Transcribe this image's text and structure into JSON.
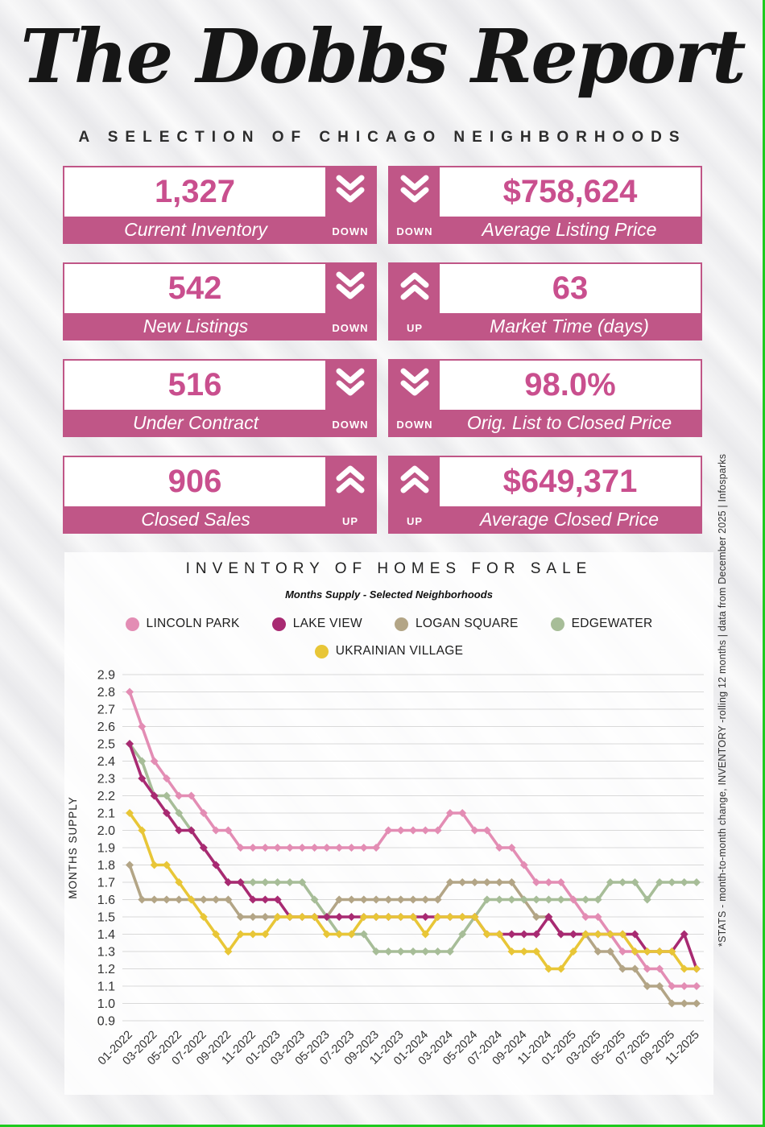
{
  "header": {
    "title": "The Dobbs Report",
    "subtitle": "A SELECTION OF CHICAGO NEIGHBORHOODS"
  },
  "stats": {
    "accent_color": "#c05687",
    "number_color": "#c94f8e",
    "cards": [
      {
        "value": "1,327",
        "label": "Current Inventory",
        "direction": "down",
        "trend_label": "DOWN",
        "arrow_side": "right"
      },
      {
        "value": "$758,624",
        "label": "Average Listing Price",
        "direction": "down",
        "trend_label": "DOWN",
        "arrow_side": "left"
      },
      {
        "value": "542",
        "label": "New Listings",
        "direction": "down",
        "trend_label": "DOWN",
        "arrow_side": "right"
      },
      {
        "value": "63",
        "label": "Market Time (days)",
        "direction": "up",
        "trend_label": "UP",
        "arrow_side": "left"
      },
      {
        "value": "516",
        "label": "Under Contract",
        "direction": "down",
        "trend_label": "DOWN",
        "arrow_side": "right"
      },
      {
        "value": "98.0%",
        "label": "Orig. List to Closed Price",
        "direction": "down",
        "trend_label": "DOWN",
        "arrow_side": "left"
      },
      {
        "value": "906",
        "label": "Closed Sales",
        "direction": "up",
        "trend_label": "UP",
        "arrow_side": "right"
      },
      {
        "value": "$649,371",
        "label": "Average Closed Price",
        "direction": "up",
        "trend_label": "UP",
        "arrow_side": "left"
      }
    ]
  },
  "chart": {
    "title": "INVENTORY OF HOMES FOR SALE",
    "subtitle": "Months Supply - Selected Neighborhoods",
    "ylabel": "MONTHS SUPPLY"
  },
  "chart_data": {
    "type": "line",
    "title": "INVENTORY OF HOMES FOR SALE",
    "subtitle": "Months Supply - Selected Neighborhoods",
    "ylabel": "MONTHS SUPPLY",
    "ylim": [
      0.9,
      2.9
    ],
    "ytick_step": 0.1,
    "grid": true,
    "legend_position": "top",
    "marker": "diamond",
    "x_start": "01-2022",
    "x_end": "11-2025",
    "x_tick_labels": [
      "01-2022",
      "03-2022",
      "05-2022",
      "07-2022",
      "09-2022",
      "11-2022",
      "01-2023",
      "03-2023",
      "05-2023",
      "07-2023",
      "09-2023",
      "11-2023",
      "01-2024",
      "03-2024",
      "05-2024",
      "07-2024",
      "09-2024",
      "11-2024",
      "01-2025",
      "03-2025",
      "05-2025",
      "07-2025",
      "09-2025",
      "11-2025"
    ],
    "points_per_series": 47,
    "series": [
      {
        "name": "LINCOLN PARK",
        "color": "#e38db4",
        "values": [
          2.8,
          2.6,
          2.4,
          2.3,
          2.2,
          2.2,
          2.1,
          2.0,
          2.0,
          1.9,
          1.9,
          1.9,
          1.9,
          1.9,
          1.9,
          1.9,
          1.9,
          1.9,
          1.9,
          1.9,
          1.9,
          2.0,
          2.0,
          2.0,
          2.0,
          2.0,
          2.1,
          2.1,
          2.0,
          2.0,
          1.9,
          1.9,
          1.8,
          1.7,
          1.7,
          1.7,
          1.6,
          1.5,
          1.5,
          1.4,
          1.3,
          1.3,
          1.2,
          1.2,
          1.1,
          1.1,
          1.1
        ]
      },
      {
        "name": "LAKE VIEW",
        "color": "#a82a72",
        "values": [
          2.5,
          2.3,
          2.2,
          2.1,
          2.0,
          2.0,
          1.9,
          1.8,
          1.7,
          1.7,
          1.6,
          1.6,
          1.6,
          1.5,
          1.5,
          1.5,
          1.5,
          1.5,
          1.5,
          1.5,
          1.5,
          1.5,
          1.5,
          1.5,
          1.5,
          1.5,
          1.5,
          1.5,
          1.5,
          1.4,
          1.4,
          1.4,
          1.4,
          1.4,
          1.5,
          1.4,
          1.4,
          1.4,
          1.4,
          1.4,
          1.4,
          1.4,
          1.3,
          1.3,
          1.3,
          1.4,
          1.2
        ]
      },
      {
        "name": "LOGAN SQUARE",
        "color": "#b3a586",
        "values": [
          1.8,
          1.6,
          1.6,
          1.6,
          1.6,
          1.6,
          1.6,
          1.6,
          1.6,
          1.5,
          1.5,
          1.5,
          1.5,
          1.5,
          1.5,
          1.5,
          1.5,
          1.6,
          1.6,
          1.6,
          1.6,
          1.6,
          1.6,
          1.6,
          1.6,
          1.6,
          1.7,
          1.7,
          1.7,
          1.7,
          1.7,
          1.7,
          1.6,
          1.5,
          1.5,
          1.4,
          1.4,
          1.4,
          1.3,
          1.3,
          1.2,
          1.2,
          1.1,
          1.1,
          1.0,
          1.0,
          1.0
        ]
      },
      {
        "name": "EDGEWATER",
        "color": "#a7bd98",
        "values": [
          2.5,
          2.4,
          2.2,
          2.2,
          2.1,
          2.0,
          1.9,
          1.8,
          1.7,
          1.7,
          1.7,
          1.7,
          1.7,
          1.7,
          1.7,
          1.6,
          1.5,
          1.4,
          1.4,
          1.4,
          1.3,
          1.3,
          1.3,
          1.3,
          1.3,
          1.3,
          1.3,
          1.4,
          1.5,
          1.6,
          1.6,
          1.6,
          1.6,
          1.6,
          1.6,
          1.6,
          1.6,
          1.6,
          1.6,
          1.7,
          1.7,
          1.7,
          1.6,
          1.7,
          1.7,
          1.7,
          1.7
        ]
      },
      {
        "name": "UKRAINIAN VILLAGE",
        "color": "#e8c637",
        "values": [
          2.1,
          2.0,
          1.8,
          1.8,
          1.7,
          1.6,
          1.5,
          1.4,
          1.3,
          1.4,
          1.4,
          1.4,
          1.5,
          1.5,
          1.5,
          1.5,
          1.4,
          1.4,
          1.4,
          1.5,
          1.5,
          1.5,
          1.5,
          1.5,
          1.4,
          1.5,
          1.5,
          1.5,
          1.5,
          1.4,
          1.4,
          1.3,
          1.3,
          1.3,
          1.2,
          1.2,
          1.3,
          1.4,
          1.4,
          1.4,
          1.4,
          1.3,
          1.3,
          1.3,
          1.3,
          1.2,
          1.2
        ]
      }
    ]
  },
  "side_note": "*STATS  - month-to-month change, INVENTORY -rolling 12 months | data from December  2025 | Infosparks",
  "border_color": "#1ecb1e"
}
